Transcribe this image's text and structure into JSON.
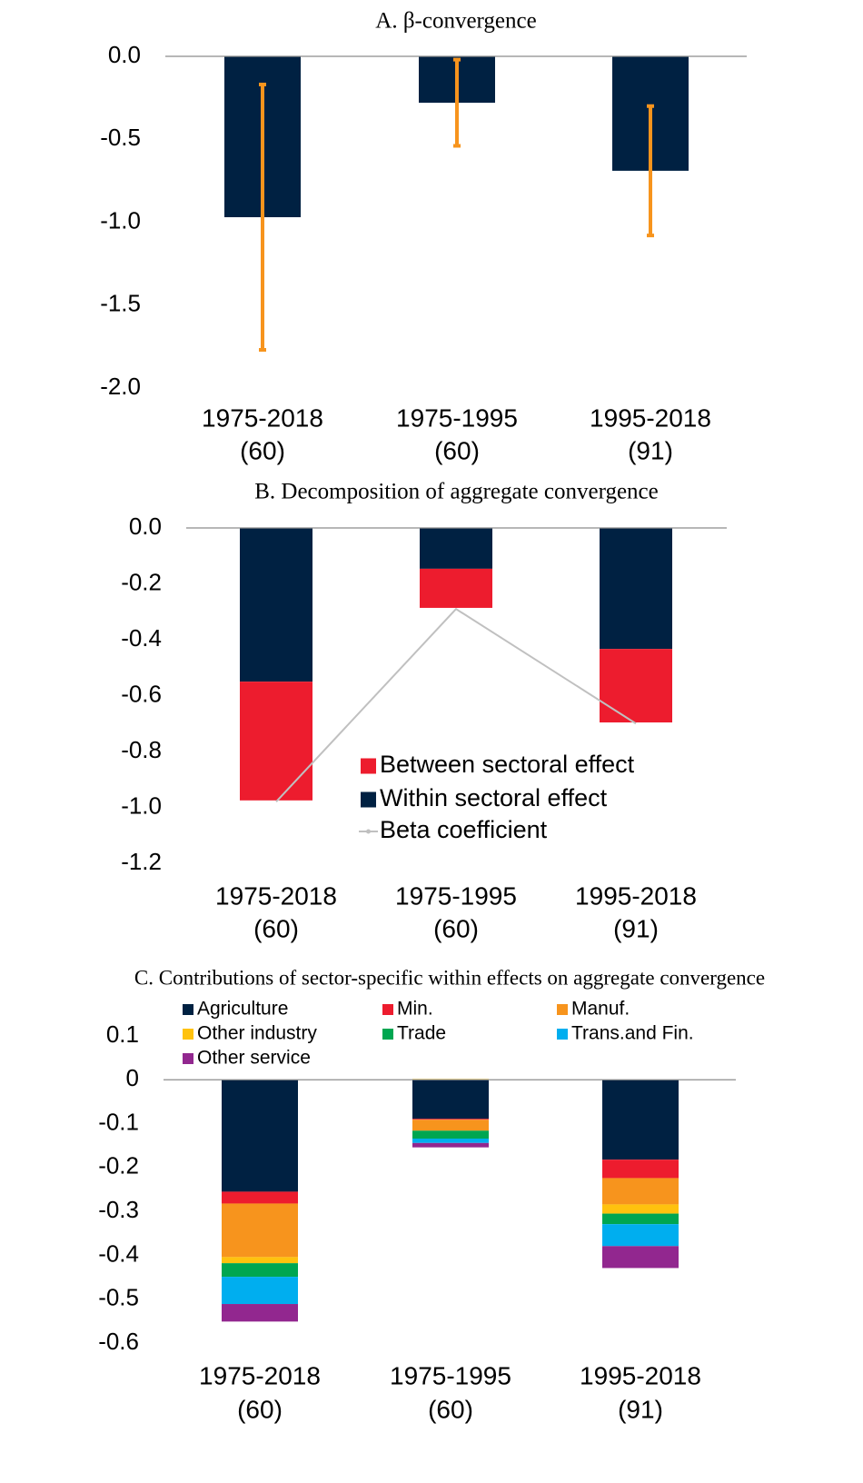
{
  "chart_data": [
    {
      "type": "bar",
      "title": "A. β-convergence",
      "categories": [
        [
          "1975-2018",
          "(60)"
        ],
        [
          "1975-1995",
          "(60)"
        ],
        [
          "1995-2018",
          "(91)"
        ]
      ],
      "values": [
        -0.97,
        -0.28,
        -0.69
      ],
      "errors": [
        0.8,
        0.26,
        0.39
      ],
      "color": "#002142",
      "error_color": "#f7941d",
      "ylim": [
        -2,
        0
      ],
      "yticks": [
        {
          "value": 0,
          "label": "0.0"
        },
        -0.5,
        {
          "value": -1,
          "label": "-1.0"
        },
        -1.5,
        {
          "value": -2,
          "label": "-2.0"
        }
      ]
    },
    {
      "type": "stacked_bar",
      "title": "B. Decomposition of aggregate convergence",
      "categories": [
        [
          "1975-2018",
          "(60)"
        ],
        [
          "1975-1995",
          "(60)"
        ],
        [
          "1995-2018",
          "(91)"
        ]
      ],
      "series": [
        {
          "name": "Within sectoral effect",
          "color": "#002142",
          "values": [
            -0.55,
            -0.146,
            -0.433
          ]
        },
        {
          "name": "Between sectoral effect",
          "color": "#ed1c2e",
          "values": [
            -0.425,
            -0.14,
            -0.263
          ]
        },
        {
          "name": "Beta  coefficient",
          "color": "#c0c0c0",
          "type": "line",
          "values": [
            -0.98,
            -0.29,
            -0.7
          ]
        }
      ],
      "ylim": [
        -1.2,
        0
      ],
      "yticks": [
        {
          "value": 0,
          "label": "0.0"
        },
        -0.2,
        -0.4,
        -0.6,
        -0.8,
        {
          "value": -1,
          "label": "-1.0"
        },
        -1.2
      ]
    },
    {
      "type": "stacked_bar",
      "title": "C. Contributions of sector-specific within effects on aggregate convergence",
      "categories": [
        [
          "1975-2018",
          "(60)"
        ],
        [
          "1975-1995",
          "(60)"
        ],
        [
          "1995-2018",
          "(91)"
        ]
      ],
      "series": [
        {
          "name": "Agriculture",
          "color": "#002142",
          "values": [
            -0.255,
            -0.089,
            -0.182
          ]
        },
        {
          "name": "Min.",
          "color": "#ed1c2e",
          "values": [
            -0.027,
            -0.002,
            -0.042
          ]
        },
        {
          "name": "Manuf.",
          "color": "#f7941d",
          "values": [
            -0.122,
            -0.025,
            -0.06
          ]
        },
        {
          "name": "Other industry",
          "color": "#ffc20e",
          "values": [
            -0.014,
            0.002,
            -0.021
          ]
        },
        {
          "name": "Trade",
          "color": "#00a651",
          "values": [
            -0.031,
            -0.018,
            -0.024
          ]
        },
        {
          "name": "Trans.and Fin.",
          "color": "#00aeef",
          "values": [
            -0.062,
            -0.01,
            -0.05
          ]
        },
        {
          "name": "Other service",
          "color": "#92278f",
          "values": [
            -0.04,
            -0.01,
            -0.05
          ]
        }
      ],
      "ylim": [
        -0.6,
        0.1
      ],
      "yticks": [
        0.1,
        0,
        -0.1,
        -0.2,
        -0.3,
        -0.4,
        -0.5,
        -0.6
      ]
    }
  ]
}
